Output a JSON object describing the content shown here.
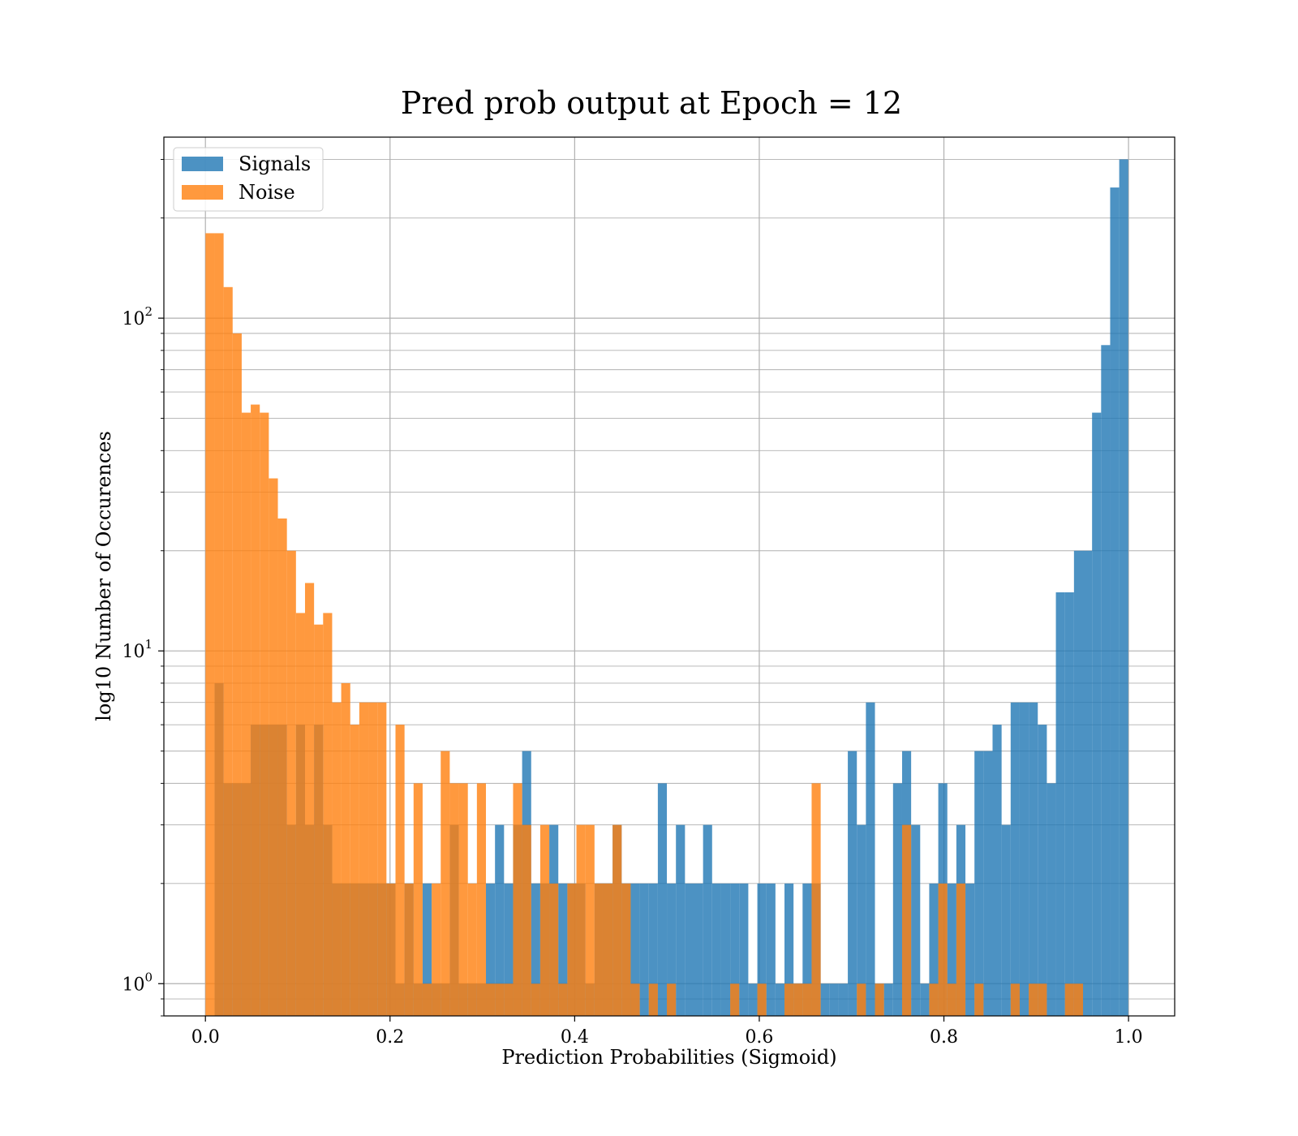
{
  "chart_data": {
    "type": "bar",
    "title": "Pred prob output at Epoch = 12",
    "xlabel": "Prediction Probabilities (Sigmoid)",
    "ylabel": "log10 Number of Occurences",
    "xlim": [
      -0.045,
      1.05
    ],
    "ylim": [
      0.8,
      350
    ],
    "y_scale": "log",
    "grid": true,
    "legend_position": "top-left",
    "x_ticks": [
      0.0,
      0.2,
      0.4,
      0.6,
      0.8,
      1.0
    ],
    "x_tick_labels": [
      "0.0",
      "0.2",
      "0.4",
      "0.6",
      "0.8",
      "1.0"
    ],
    "y_ticks": [
      1,
      10,
      100
    ],
    "y_tick_labels": [
      {
        "base": "10",
        "exp": "0"
      },
      {
        "base": "10",
        "exp": "1"
      },
      {
        "base": "10",
        "exp": "2"
      }
    ],
    "bin_width": 0.0098,
    "series": [
      {
        "name": "Signals",
        "color": "#1f77b4",
        "bins": [
          [
            0.0148,
            8
          ],
          [
            0.0246,
            4
          ],
          [
            0.0344,
            4
          ],
          [
            0.0442,
            4
          ],
          [
            0.054,
            6
          ],
          [
            0.0638,
            6
          ],
          [
            0.0736,
            6
          ],
          [
            0.0834,
            6
          ],
          [
            0.0932,
            3
          ],
          [
            0.103,
            6
          ],
          [
            0.1128,
            3
          ],
          [
            0.1226,
            6
          ],
          [
            0.1324,
            3
          ],
          [
            0.1422,
            2
          ],
          [
            0.152,
            2
          ],
          [
            0.1618,
            2
          ],
          [
            0.1716,
            2
          ],
          [
            0.1814,
            2
          ],
          [
            0.1912,
            2
          ],
          [
            0.201,
            2
          ],
          [
            0.2108,
            1
          ],
          [
            0.2206,
            2
          ],
          [
            0.2304,
            1
          ],
          [
            0.2402,
            2
          ],
          [
            0.25,
            1
          ],
          [
            0.2598,
            1
          ],
          [
            0.2696,
            3
          ],
          [
            0.2794,
            1
          ],
          [
            0.2892,
            1
          ],
          [
            0.299,
            1
          ],
          [
            0.3088,
            2
          ],
          [
            0.3186,
            3
          ],
          [
            0.3284,
            2
          ],
          [
            0.3382,
            3
          ],
          [
            0.348,
            5
          ],
          [
            0.3578,
            2
          ],
          [
            0.3676,
            2
          ],
          [
            0.3774,
            3
          ],
          [
            0.3872,
            2
          ],
          [
            0.397,
            2
          ],
          [
            0.4068,
            2
          ],
          [
            0.4166,
            1
          ],
          [
            0.4264,
            2
          ],
          [
            0.4362,
            2
          ],
          [
            0.446,
            3
          ],
          [
            0.4558,
            2
          ],
          [
            0.4656,
            2
          ],
          [
            0.4754,
            2
          ],
          [
            0.4852,
            2
          ],
          [
            0.495,
            4
          ],
          [
            0.5048,
            2
          ],
          [
            0.5146,
            3
          ],
          [
            0.5244,
            2
          ],
          [
            0.5342,
            2
          ],
          [
            0.544,
            3
          ],
          [
            0.5538,
            2
          ],
          [
            0.5636,
            2
          ],
          [
            0.5734,
            2
          ],
          [
            0.5832,
            2
          ],
          [
            0.593,
            1
          ],
          [
            0.6028,
            2
          ],
          [
            0.6126,
            2
          ],
          [
            0.6224,
            1
          ],
          [
            0.6322,
            2
          ],
          [
            0.642,
            1
          ],
          [
            0.6518,
            2
          ],
          [
            0.6616,
            2
          ],
          [
            0.6714,
            1
          ],
          [
            0.6812,
            1
          ],
          [
            0.691,
            1
          ],
          [
            0.7008,
            5
          ],
          [
            0.7106,
            3
          ],
          [
            0.7204,
            7
          ],
          [
            0.7302,
            1
          ],
          [
            0.74,
            1
          ],
          [
            0.7498,
            4
          ],
          [
            0.7596,
            5
          ],
          [
            0.7694,
            3
          ],
          [
            0.7792,
            1
          ],
          [
            0.789,
            2
          ],
          [
            0.7988,
            4
          ],
          [
            0.8086,
            2
          ],
          [
            0.8184,
            3
          ],
          [
            0.8282,
            2
          ],
          [
            0.838,
            5
          ],
          [
            0.8478,
            5
          ],
          [
            0.8576,
            6
          ],
          [
            0.8674,
            3
          ],
          [
            0.8772,
            7
          ],
          [
            0.887,
            7
          ],
          [
            0.8968,
            7
          ],
          [
            0.9066,
            6
          ],
          [
            0.9164,
            4
          ],
          [
            0.9262,
            15
          ],
          [
            0.936,
            15
          ],
          [
            0.9458,
            20
          ],
          [
            0.9556,
            20
          ],
          [
            0.9654,
            52
          ],
          [
            0.9752,
            83
          ],
          [
            0.985,
            247
          ],
          [
            0.9948,
            300
          ]
        ]
      },
      {
        "name": "Noise",
        "color": "#ff7f0e",
        "bins": [
          [
            0.005,
            180
          ],
          [
            0.0148,
            180
          ],
          [
            0.0246,
            124
          ],
          [
            0.0344,
            90
          ],
          [
            0.0442,
            52
          ],
          [
            0.054,
            55
          ],
          [
            0.0638,
            52
          ],
          [
            0.0736,
            33
          ],
          [
            0.0834,
            25
          ],
          [
            0.0932,
            20
          ],
          [
            0.103,
            13
          ],
          [
            0.1128,
            16
          ],
          [
            0.1226,
            12
          ],
          [
            0.1324,
            13
          ],
          [
            0.1422,
            7
          ],
          [
            0.152,
            8
          ],
          [
            0.1618,
            6
          ],
          [
            0.1716,
            7
          ],
          [
            0.1814,
            7
          ],
          [
            0.1912,
            7
          ],
          [
            0.201,
            2
          ],
          [
            0.2108,
            6
          ],
          [
            0.2206,
            2
          ],
          [
            0.2304,
            4
          ],
          [
            0.2402,
            1
          ],
          [
            0.25,
            2
          ],
          [
            0.2598,
            5
          ],
          [
            0.2696,
            4
          ],
          [
            0.2794,
            4
          ],
          [
            0.2892,
            2
          ],
          [
            0.299,
            4
          ],
          [
            0.3088,
            1
          ],
          [
            0.3186,
            1
          ],
          [
            0.3284,
            1
          ],
          [
            0.3382,
            4
          ],
          [
            0.348,
            3
          ],
          [
            0.3578,
            1
          ],
          [
            0.3676,
            3
          ],
          [
            0.3774,
            2
          ],
          [
            0.3872,
            1
          ],
          [
            0.397,
            2
          ],
          [
            0.4068,
            3
          ],
          [
            0.4166,
            3
          ],
          [
            0.4264,
            2
          ],
          [
            0.4362,
            2
          ],
          [
            0.446,
            3
          ],
          [
            0.4558,
            2
          ],
          [
            0.4656,
            1
          ],
          [
            0.4852,
            1
          ],
          [
            0.5048,
            1
          ],
          [
            0.5734,
            1
          ],
          [
            0.6028,
            1
          ],
          [
            0.6322,
            1
          ],
          [
            0.642,
            1
          ],
          [
            0.6518,
            1
          ],
          [
            0.6616,
            4
          ],
          [
            0.7106,
            1
          ],
          [
            0.7302,
            1
          ],
          [
            0.7596,
            3
          ],
          [
            0.789,
            1
          ],
          [
            0.7988,
            2
          ],
          [
            0.8086,
            1
          ],
          [
            0.8184,
            2
          ],
          [
            0.838,
            1
          ],
          [
            0.8772,
            1
          ],
          [
            0.8968,
            1
          ],
          [
            0.9066,
            1
          ],
          [
            0.936,
            1
          ],
          [
            0.9458,
            1
          ]
        ]
      }
    ]
  }
}
